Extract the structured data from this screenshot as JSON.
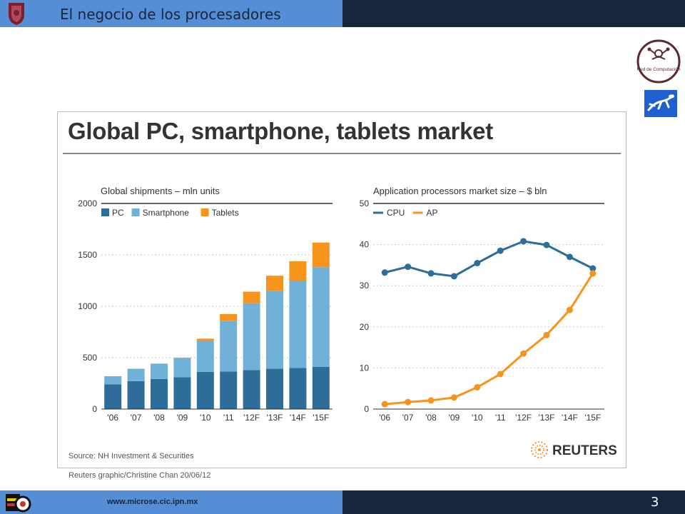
{
  "slide": {
    "title": "El negocio de los procesadores",
    "footer_url": "www.microse.cic.ipn.mx",
    "page_number": "3",
    "red_logo_text": "Red de Computación"
  },
  "colors": {
    "pc": "#2e6d9a",
    "smartphone": "#71b1d8",
    "tablets": "#f7941d",
    "cpu": "#2e6d9a",
    "ap": "#f7941d",
    "topbar_light": "#558ed5",
    "topbar_dark": "#17253d"
  },
  "figure": {
    "title": "Global PC, smartphone, tablets market",
    "source": "Source: NH Investment & Securities",
    "credit": "Reuters graphic/Christine Chan  20/06/12",
    "brand": "REUTERS"
  },
  "chart_data": [
    {
      "type": "bar",
      "stacked": true,
      "title": "Global shipments – mln units",
      "categories": [
        "'06",
        "'07",
        "'08",
        "'09",
        "'10",
        "'11",
        "'12F",
        "'13F",
        "'14F",
        "'15F"
      ],
      "series": [
        {
          "name": "PC",
          "values": [
            240,
            272,
            292,
            310,
            362,
            366,
            380,
            392,
            400,
            410
          ]
        },
        {
          "name": "Smartphone",
          "values": [
            80,
            120,
            150,
            185,
            305,
            490,
            650,
            755,
            850,
            970
          ]
        },
        {
          "name": "Tablets",
          "values": [
            0,
            0,
            0,
            5,
            18,
            68,
            112,
            150,
            188,
            240
          ]
        }
      ],
      "ylim": [
        0,
        2000
      ],
      "yticks": [
        0,
        500,
        1000,
        1500,
        2000
      ],
      "legend": "top-left",
      "grid": true
    },
    {
      "type": "line",
      "title": "Application processors market size – $ bln",
      "categories": [
        "'06",
        "'07",
        "'08",
        "'09",
        "'10",
        "'11",
        "'12F",
        "'13F",
        "'14F",
        "'15F"
      ],
      "series": [
        {
          "name": "CPU",
          "values": [
            33.2,
            34.6,
            33.0,
            32.3,
            35.5,
            38.5,
            40.8,
            39.9,
            37.0,
            34.2
          ]
        },
        {
          "name": "AP",
          "values": [
            1.2,
            1.7,
            2.1,
            2.8,
            5.3,
            8.5,
            13.5,
            18.0,
            24.1,
            33.0
          ]
        }
      ],
      "ylim": [
        0,
        50
      ],
      "yticks": [
        0,
        10,
        20,
        30,
        40,
        50
      ],
      "legend": "top-left",
      "grid": true
    }
  ]
}
